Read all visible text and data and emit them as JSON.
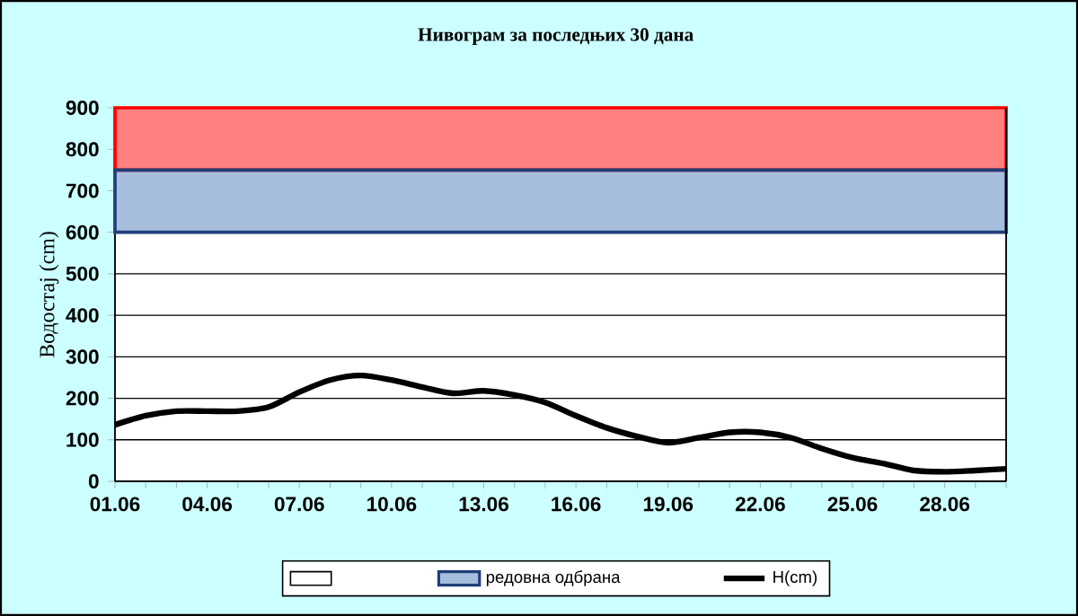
{
  "chart_data": {
    "type": "line",
    "title": "Нивограм за последњих 30 дана",
    "ylabel": "Водостај (cm)",
    "categories": [
      "01.06",
      null,
      null,
      "04.06",
      null,
      null,
      "07.06",
      null,
      null,
      "10.06",
      null,
      null,
      "13.06",
      null,
      null,
      "16.06",
      null,
      null,
      "19.06",
      null,
      null,
      "22.06",
      null,
      null,
      "25.06",
      null,
      null,
      "28.06",
      null,
      null
    ],
    "series": [
      {
        "name": "H(cm)",
        "color": "#000000",
        "values": [
          136,
          158,
          169,
          169,
          169,
          179,
          215,
          244,
          255,
          244,
          227,
          212,
          218,
          208,
          190,
          158,
          129,
          108,
          93,
          105,
          118,
          118,
          105,
          79,
          57,
          43,
          26,
          23,
          26,
          30
        ]
      }
    ],
    "ylim": [
      0,
      900
    ],
    "yticks": [
      0,
      100,
      200,
      300,
      400,
      500,
      600,
      700,
      800,
      900
    ],
    "grid": "y",
    "legend": "bottom",
    "marker": "none",
    "line_style": "solid",
    "bands": [
      {
        "axis": "y",
        "from": 750,
        "to": 900,
        "color": "#ff8080"
      },
      {
        "axis": "y",
        "from": 600,
        "to": 750,
        "label": "редовна одбрана",
        "color": "#a6bedc"
      }
    ]
  }
}
